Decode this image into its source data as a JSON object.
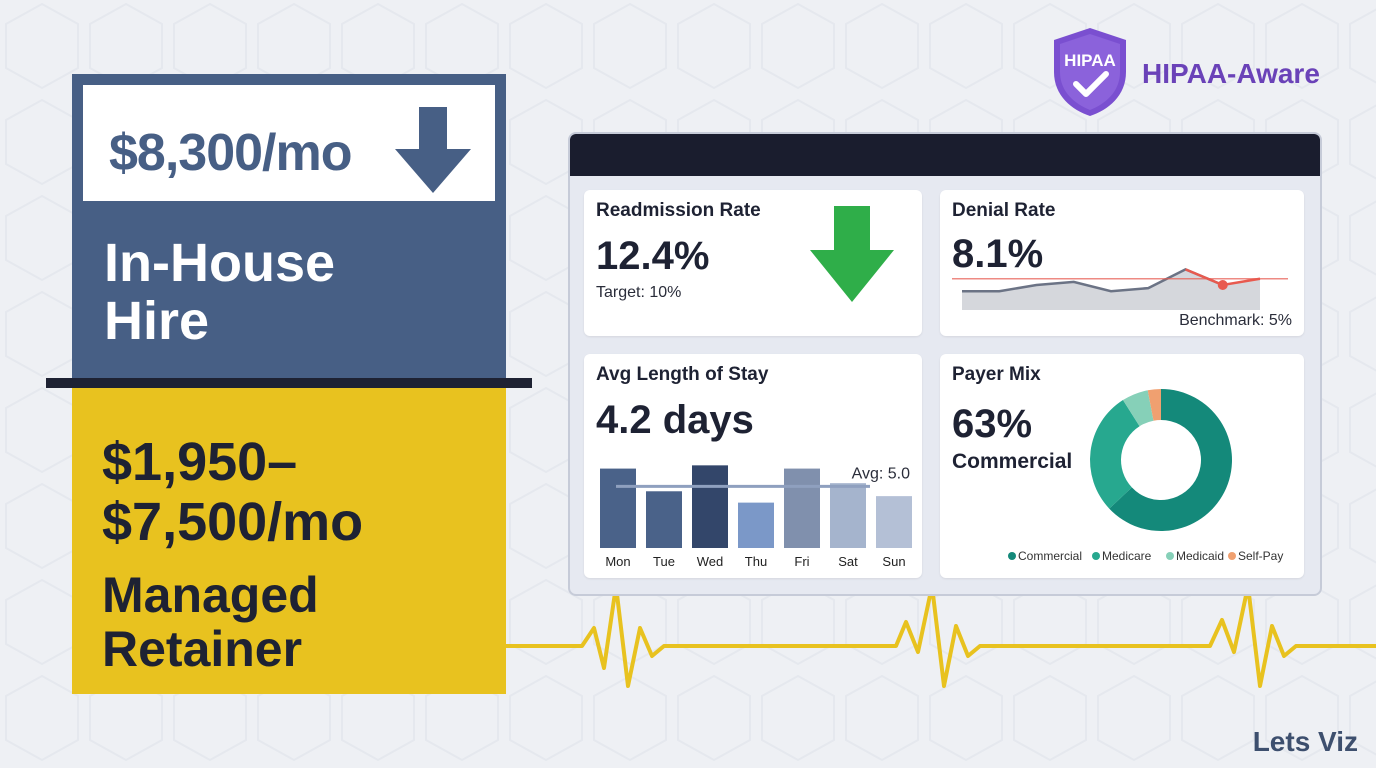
{
  "inhouse": {
    "price": "$8,300/mo",
    "label_line1": "In-House",
    "label_line2": "Hire"
  },
  "retainer": {
    "price_line1": "$1,950–",
    "price_line2": "$7,500/mo",
    "label_line1": "Managed",
    "label_line2": "Retainer"
  },
  "badge": {
    "shield_text": "HIPAA",
    "label": "HIPAA-Aware"
  },
  "dashboard": {
    "readmission": {
      "title": "Readmission Rate",
      "value": "12.4%",
      "target": "Target: 10%"
    },
    "denial": {
      "title": "Denial Rate",
      "value": "8.1%",
      "benchmark": "Benchmark: 5%"
    },
    "los": {
      "title": "Avg Length of Stay",
      "value": "4.2 days",
      "avg_label": "Avg: 5.0"
    },
    "payer": {
      "title": "Payer Mix",
      "value": "63%",
      "value_label": "Commercial"
    }
  },
  "chart_data": [
    {
      "type": "line",
      "series": [
        {
          "values": [
            3,
            3,
            4,
            4.5,
            3,
            3.5,
            6.5,
            4,
            5
          ]
        }
      ],
      "reference_line": 5,
      "ylim": [
        0,
        8
      ]
    },
    {
      "type": "bar",
      "categories": [
        "Mon",
        "Tue",
        "Wed",
        "Thu",
        "Fri",
        "Sat",
        "Sun"
      ],
      "values": [
        4.9,
        3.5,
        5.1,
        2.8,
        4.9,
        4.0,
        3.2
      ],
      "reference_line": 3.8,
      "ylim": [
        0,
        5.8
      ],
      "colors": [
        "#4a6289",
        "#4a6289",
        "#33466a",
        "#7b98c8",
        "#8090ad",
        "#a5b4cd",
        "#b4c0d6"
      ]
    },
    {
      "type": "pie",
      "categories": [
        "Commercial",
        "Medicare",
        "Medicaid",
        "Self-Pay"
      ],
      "values": [
        63,
        28,
        6,
        3
      ],
      "colors": [
        "#14897a",
        "#27a88f",
        "#86d0b8",
        "#f0a070"
      ]
    }
  ],
  "colors": {
    "inhouse": "#475f85",
    "retainer": "#e8c21f",
    "arrow_green": "#2fae49",
    "hipaa": "#6a42b8",
    "benchmark_red": "#e85a4f",
    "heartbeat": "#e8c21f"
  },
  "footer": {
    "brand": "Lets Viz"
  }
}
